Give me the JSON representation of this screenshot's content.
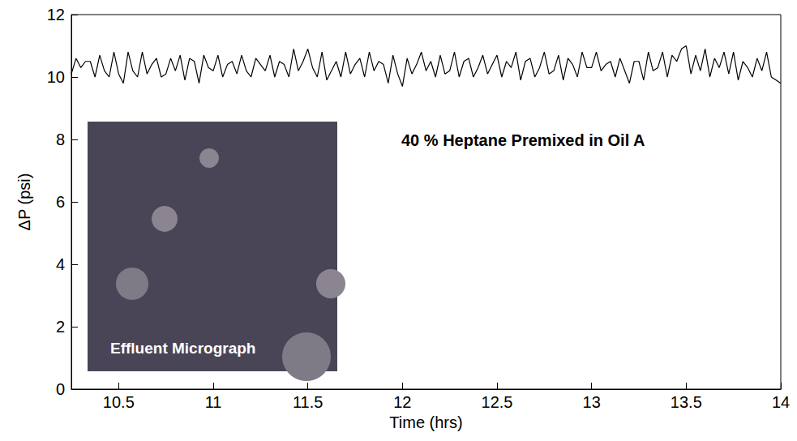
{
  "chart_data": {
    "type": "line",
    "xlabel": "Time (hrs)",
    "ylabel": "ΔP (psi)",
    "annotations": [
      "40 % Heptane Premixed in Oil A",
      "Effluent Micrograph"
    ],
    "xlim": [
      10.25,
      14
    ],
    "xticks": [
      10.5,
      11,
      11.5,
      12,
      12.5,
      13,
      13.5,
      14
    ],
    "ylim": [
      0,
      12
    ],
    "yticks": [
      0,
      2,
      4,
      6,
      8,
      10,
      12
    ],
    "grid": false,
    "color": "#000000",
    "x": [
      10.25,
      10.275,
      10.3,
      10.325,
      10.35,
      10.375,
      10.4,
      10.425,
      10.45,
      10.475,
      10.5,
      10.525,
      10.55,
      10.575,
      10.6,
      10.625,
      10.65,
      10.675,
      10.7,
      10.725,
      10.75,
      10.775,
      10.8,
      10.825,
      10.85,
      10.875,
      10.9,
      10.925,
      10.95,
      10.975,
      11.0,
      11.025,
      11.05,
      11.075,
      11.1,
      11.125,
      11.15,
      11.175,
      11.2,
      11.225,
      11.25,
      11.275,
      11.3,
      11.325,
      11.35,
      11.375,
      11.4,
      11.425,
      11.45,
      11.475,
      11.5,
      11.525,
      11.55,
      11.575,
      11.6,
      11.625,
      11.65,
      11.675,
      11.7,
      11.725,
      11.75,
      11.775,
      11.8,
      11.825,
      11.85,
      11.875,
      11.9,
      11.925,
      11.95,
      11.975,
      12.0,
      12.025,
      12.05,
      12.075,
      12.1,
      12.125,
      12.15,
      12.175,
      12.2,
      12.225,
      12.25,
      12.275,
      12.3,
      12.325,
      12.35,
      12.375,
      12.4,
      12.425,
      12.45,
      12.475,
      12.5,
      12.525,
      12.55,
      12.575,
      12.6,
      12.625,
      12.65,
      12.675,
      12.7,
      12.725,
      12.75,
      12.775,
      12.8,
      12.825,
      12.85,
      12.875,
      12.9,
      12.925,
      12.95,
      12.975,
      13.0,
      13.025,
      13.05,
      13.075,
      13.1,
      13.125,
      13.15,
      13.175,
      13.2,
      13.225,
      13.25,
      13.275,
      13.3,
      13.325,
      13.35,
      13.375,
      13.4,
      13.425,
      13.45,
      13.475,
      13.5,
      13.525,
      13.55,
      13.575,
      13.6,
      13.625,
      13.65,
      13.675,
      13.7,
      13.725,
      13.75,
      13.775,
      13.8,
      13.825,
      13.85,
      13.875,
      13.9,
      13.925,
      13.95,
      13.975,
      14.0
    ],
    "values": [
      10.1,
      10.6,
      10.3,
      10.5,
      10.5,
      10.0,
      10.7,
      10.2,
      10.0,
      10.8,
      10.1,
      9.8,
      10.8,
      10.2,
      10.0,
      10.8,
      10.1,
      10.4,
      10.6,
      10.0,
      10.1,
      10.6,
      10.2,
      10.7,
      9.9,
      10.6,
      10.5,
      9.8,
      10.7,
      10.3,
      10.2,
      10.7,
      10.0,
      10.4,
      10.5,
      10.1,
      10.7,
      10.2,
      10.0,
      10.6,
      10.4,
      10.2,
      10.7,
      10.0,
      10.5,
      10.4,
      10.0,
      10.9,
      10.2,
      10.5,
      10.9,
      10.3,
      10.0,
      10.8,
      9.9,
      10.2,
      10.5,
      10.0,
      10.8,
      10.1,
      10.4,
      10.6,
      10.0,
      10.8,
      10.2,
      10.5,
      10.4,
      9.8,
      10.7,
      10.1,
      9.7,
      10.6,
      10.1,
      10.4,
      10.8,
      10.2,
      10.5,
      10.0,
      10.7,
      10.1,
      10.2,
      10.8,
      10.0,
      10.5,
      10.6,
      10.0,
      10.3,
      10.7,
      10.1,
      10.4,
      10.7,
      10.0,
      10.5,
      10.3,
      10.8,
      9.9,
      10.5,
      10.6,
      10.0,
      10.3,
      10.8,
      10.1,
      10.2,
      10.7,
      9.9,
      10.6,
      10.4,
      10.0,
      10.8,
      10.3,
      10.3,
      10.8,
      10.2,
      10.4,
      10.5,
      10.0,
      10.6,
      10.2,
      9.8,
      10.5,
      10.5,
      9.9,
      10.8,
      10.2,
      10.3,
      10.8,
      10.0,
      10.7,
      10.5,
      10.9,
      11.0,
      10.1,
      10.7,
      10.2,
      10.9,
      10.0,
      10.6,
      10.3,
      10.8,
      10.1,
      10.8,
      9.9,
      10.5,
      10.3,
      10.0,
      10.6,
      10.2,
      10.8,
      10.0,
      9.9,
      9.8
    ]
  }
}
